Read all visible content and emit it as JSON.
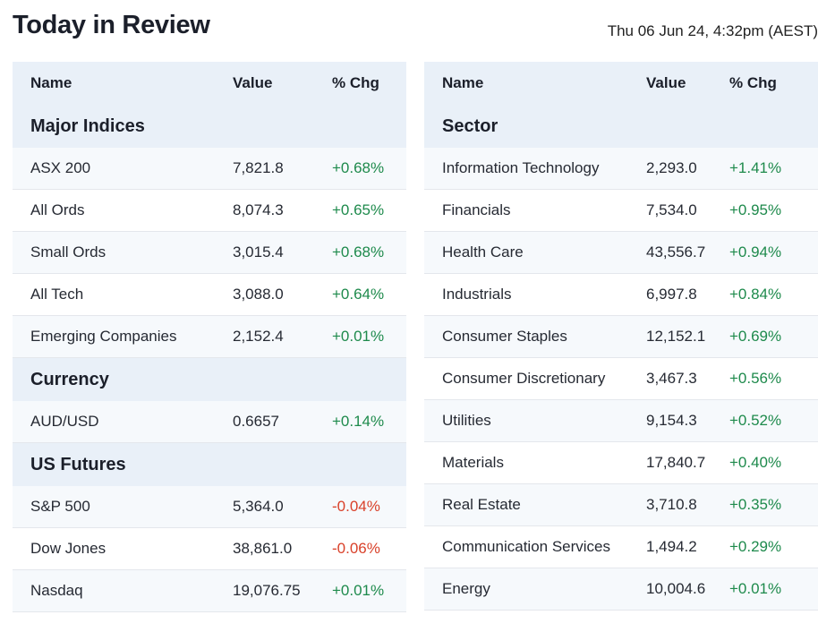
{
  "page": {
    "title": "Today in Review",
    "timestamp": "Thu 06 Jun 24, 4:32pm (AEST)"
  },
  "colors": {
    "positive": "#1e8a4c",
    "negative": "#d9412a",
    "header_bg": "#e9f0f8"
  },
  "left_table": {
    "headers": {
      "name": "Name",
      "value": "Value",
      "change": "% Chg"
    },
    "sections": [
      {
        "title": "Major Indices",
        "rows": [
          {
            "name": "ASX 200",
            "value": "7,821.8",
            "change": "+0.68%"
          },
          {
            "name": "All Ords",
            "value": "8,074.3",
            "change": "+0.65%"
          },
          {
            "name": "Small Ords",
            "value": "3,015.4",
            "change": "+0.68%"
          },
          {
            "name": "All Tech",
            "value": "3,088.0",
            "change": "+0.64%"
          },
          {
            "name": "Emerging Companies",
            "value": "2,152.4",
            "change": "+0.01%"
          }
        ]
      },
      {
        "title": "Currency",
        "rows": [
          {
            "name": "AUD/USD",
            "value": "0.6657",
            "change": "+0.14%"
          }
        ]
      },
      {
        "title": "US Futures",
        "rows": [
          {
            "name": "S&P 500",
            "value": "5,364.0",
            "change": "-0.04%"
          },
          {
            "name": "Dow Jones",
            "value": "38,861.0",
            "change": "-0.06%"
          },
          {
            "name": "Nasdaq",
            "value": "19,076.75",
            "change": "+0.01%"
          }
        ]
      }
    ]
  },
  "right_table": {
    "headers": {
      "name": "Name",
      "value": "Value",
      "change": "% Chg"
    },
    "section_title": "Sector",
    "rows": [
      {
        "name": "Information Technology",
        "value": "2,293.0",
        "change": "+1.41%"
      },
      {
        "name": "Financials",
        "value": "7,534.0",
        "change": "+0.95%"
      },
      {
        "name": "Health Care",
        "value": "43,556.7",
        "change": "+0.94%"
      },
      {
        "name": "Industrials",
        "value": "6,997.8",
        "change": "+0.84%"
      },
      {
        "name": "Consumer Staples",
        "value": "12,152.1",
        "change": "+0.69%"
      },
      {
        "name": "Consumer Discretionary",
        "value": "3,467.3",
        "change": "+0.56%"
      },
      {
        "name": "Utilities",
        "value": "9,154.3",
        "change": "+0.52%"
      },
      {
        "name": "Materials",
        "value": "17,840.7",
        "change": "+0.40%"
      },
      {
        "name": "Real Estate",
        "value": "3,710.8",
        "change": "+0.35%"
      },
      {
        "name": "Communication Services",
        "value": "1,494.2",
        "change": "+0.29%"
      },
      {
        "name": "Energy",
        "value": "10,004.6",
        "change": "+0.01%"
      }
    ]
  }
}
